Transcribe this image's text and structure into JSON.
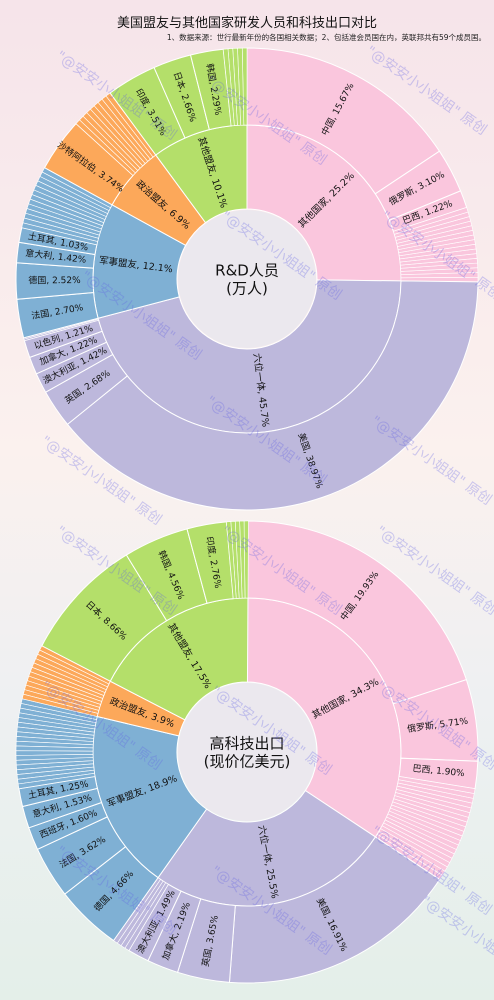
{
  "title": "美国盟友与其他国家研发人员和科技出口对比",
  "note": "1、数据来源：世行最新年份的各国相关数据；2、包括准会员国在内，英联邦共有59个成员国。",
  "watermark": "\"@安安小小姐姐\" 原创",
  "colors": {
    "其他国家": "#fac6dd",
    "六位一体": "#bdb8dc",
    "军事盟友": "#7fb0d4",
    "政治盟友": "#fca85a",
    "其他盟友": "#b4df6a",
    "center": "#ebe8ee"
  },
  "chart_data": [
    {
      "type": "sunburst",
      "title": "R&D人员\n(万人)",
      "unit": "%",
      "groups": [
        {
          "name": "其他国家",
          "value": 25.2,
          "label": "其他国家, 25.2%",
          "leaves": [
            {
              "name": "中国",
              "value": 15.67,
              "label": "中国, 15.67%"
            },
            {
              "name": "俄罗斯",
              "value": 3.1,
              "label": "俄罗斯, 3.10%"
            },
            {
              "name": "巴西",
              "value": 1.22,
              "label": "巴西, 1.22%"
            },
            {
              "name": "",
              "value": 5.21,
              "label": ""
            }
          ]
        },
        {
          "name": "六位一体",
          "value": 45.7,
          "label": "六位一体, 45.7%",
          "leaves": [
            {
              "name": "美国",
              "value": 38.97,
              "label": "美国, 38.97%"
            },
            {
              "name": "英国",
              "value": 2.68,
              "label": "英国, 2.68%"
            },
            {
              "name": "澳大利亚",
              "value": 1.42,
              "label": "澳大利亚, 1.42%"
            },
            {
              "name": "加拿大",
              "value": 1.22,
              "label": "加拿大, 1.22%"
            },
            {
              "name": "以色列",
              "value": 1.21,
              "label": "以色列, 1.21%"
            },
            {
              "name": "",
              "value": 0.2,
              "label": ""
            }
          ]
        },
        {
          "name": "军事盟友",
          "value": 12.1,
          "label": "军事盟友, 12.1%",
          "leaves": [
            {
              "name": "法国",
              "value": 2.7,
              "label": "法国, 2.70%"
            },
            {
              "name": "德国",
              "value": 2.52,
              "label": "德国, 2.52%"
            },
            {
              "name": "意大利",
              "value": 1.42,
              "label": "意大利, 1.42%"
            },
            {
              "name": "土耳其",
              "value": 1.03,
              "label": "土耳其, 1.03%"
            },
            {
              "name": "",
              "value": 4.43,
              "label": ""
            }
          ]
        },
        {
          "name": "政治盟友",
          "value": 6.9,
          "label": "政治盟友, 6.9%",
          "leaves": [
            {
              "name": "沙特阿拉伯",
              "value": 3.74,
              "label": "沙特阿拉伯, 3.74%"
            },
            {
              "name": "",
              "value": 3.16,
              "label": ""
            }
          ]
        },
        {
          "name": "其他盟友",
          "value": 10.1,
          "label": "其他盟友, 10.1%",
          "leaves": [
            {
              "name": "印度",
              "value": 3.51,
              "label": "印度, 3.51%"
            },
            {
              "name": "日本",
              "value": 2.66,
              "label": "日本, 2.66%"
            },
            {
              "name": "韩国",
              "value": 2.29,
              "label": "韩国, 2.29%"
            },
            {
              "name": "",
              "value": 1.64,
              "label": ""
            }
          ]
        }
      ]
    },
    {
      "type": "sunburst",
      "title": "高科技出口\n(现价亿美元)",
      "unit": "%",
      "groups": [
        {
          "name": "其他国家",
          "value": 34.3,
          "label": "其他国家, 34.3%",
          "leaves": [
            {
              "name": "中国",
              "value": 19.93,
              "label": "中国, 19.93%"
            },
            {
              "name": "俄罗斯",
              "value": 5.71,
              "label": "俄罗斯, 5.71%"
            },
            {
              "name": "巴西",
              "value": 1.9,
              "label": "巴西, 1.90%"
            },
            {
              "name": "",
              "value": 6.76,
              "label": ""
            }
          ]
        },
        {
          "name": "六位一体",
          "value": 25.5,
          "label": "六位一体, 25.5%",
          "leaves": [
            {
              "name": "美国",
              "value": 16.91,
              "label": "美国, 16.91%"
            },
            {
              "name": "英国",
              "value": 3.65,
              "label": "英国, 3.65%"
            },
            {
              "name": "加拿大",
              "value": 2.19,
              "label": "加拿大, 2.19%"
            },
            {
              "name": "澳大利亚",
              "value": 1.49,
              "label": "澳大利亚, 1.49%"
            },
            {
              "name": "",
              "value": 1.26,
              "label": ""
            }
          ]
        },
        {
          "name": "军事盟友",
          "value": 18.9,
          "label": "军事盟友, 18.9%",
          "leaves": [
            {
              "name": "德国",
              "value": 4.66,
              "label": "德国, 4.66%"
            },
            {
              "name": "法国",
              "value": 3.62,
              "label": "法国, 3.62%"
            },
            {
              "name": "西班牙",
              "value": 1.6,
              "label": "西班牙, 1.60%"
            },
            {
              "name": "意大利",
              "value": 1.53,
              "label": "意大利, 1.53%"
            },
            {
              "name": "土耳其",
              "value": 1.25,
              "label": "土耳其, 1.25%"
            },
            {
              "name": "",
              "value": 6.24,
              "label": ""
            }
          ]
        },
        {
          "name": "政治盟友",
          "value": 3.9,
          "label": "政治盟友, 3.9%",
          "leaves": [
            {
              "name": "",
              "value": 3.9,
              "label": ""
            }
          ]
        },
        {
          "name": "其他盟友",
          "value": 17.5,
          "label": "其他盟友, 17.5%",
          "leaves": [
            {
              "name": "日本",
              "value": 8.66,
              "label": "日本, 8.66%"
            },
            {
              "name": "韩国",
              "value": 4.56,
              "label": "韩国, 4.56%"
            },
            {
              "name": "印度",
              "value": 2.76,
              "label": "印度, 2.76%"
            },
            {
              "name": "",
              "value": 1.52,
              "label": ""
            }
          ]
        }
      ]
    }
  ]
}
